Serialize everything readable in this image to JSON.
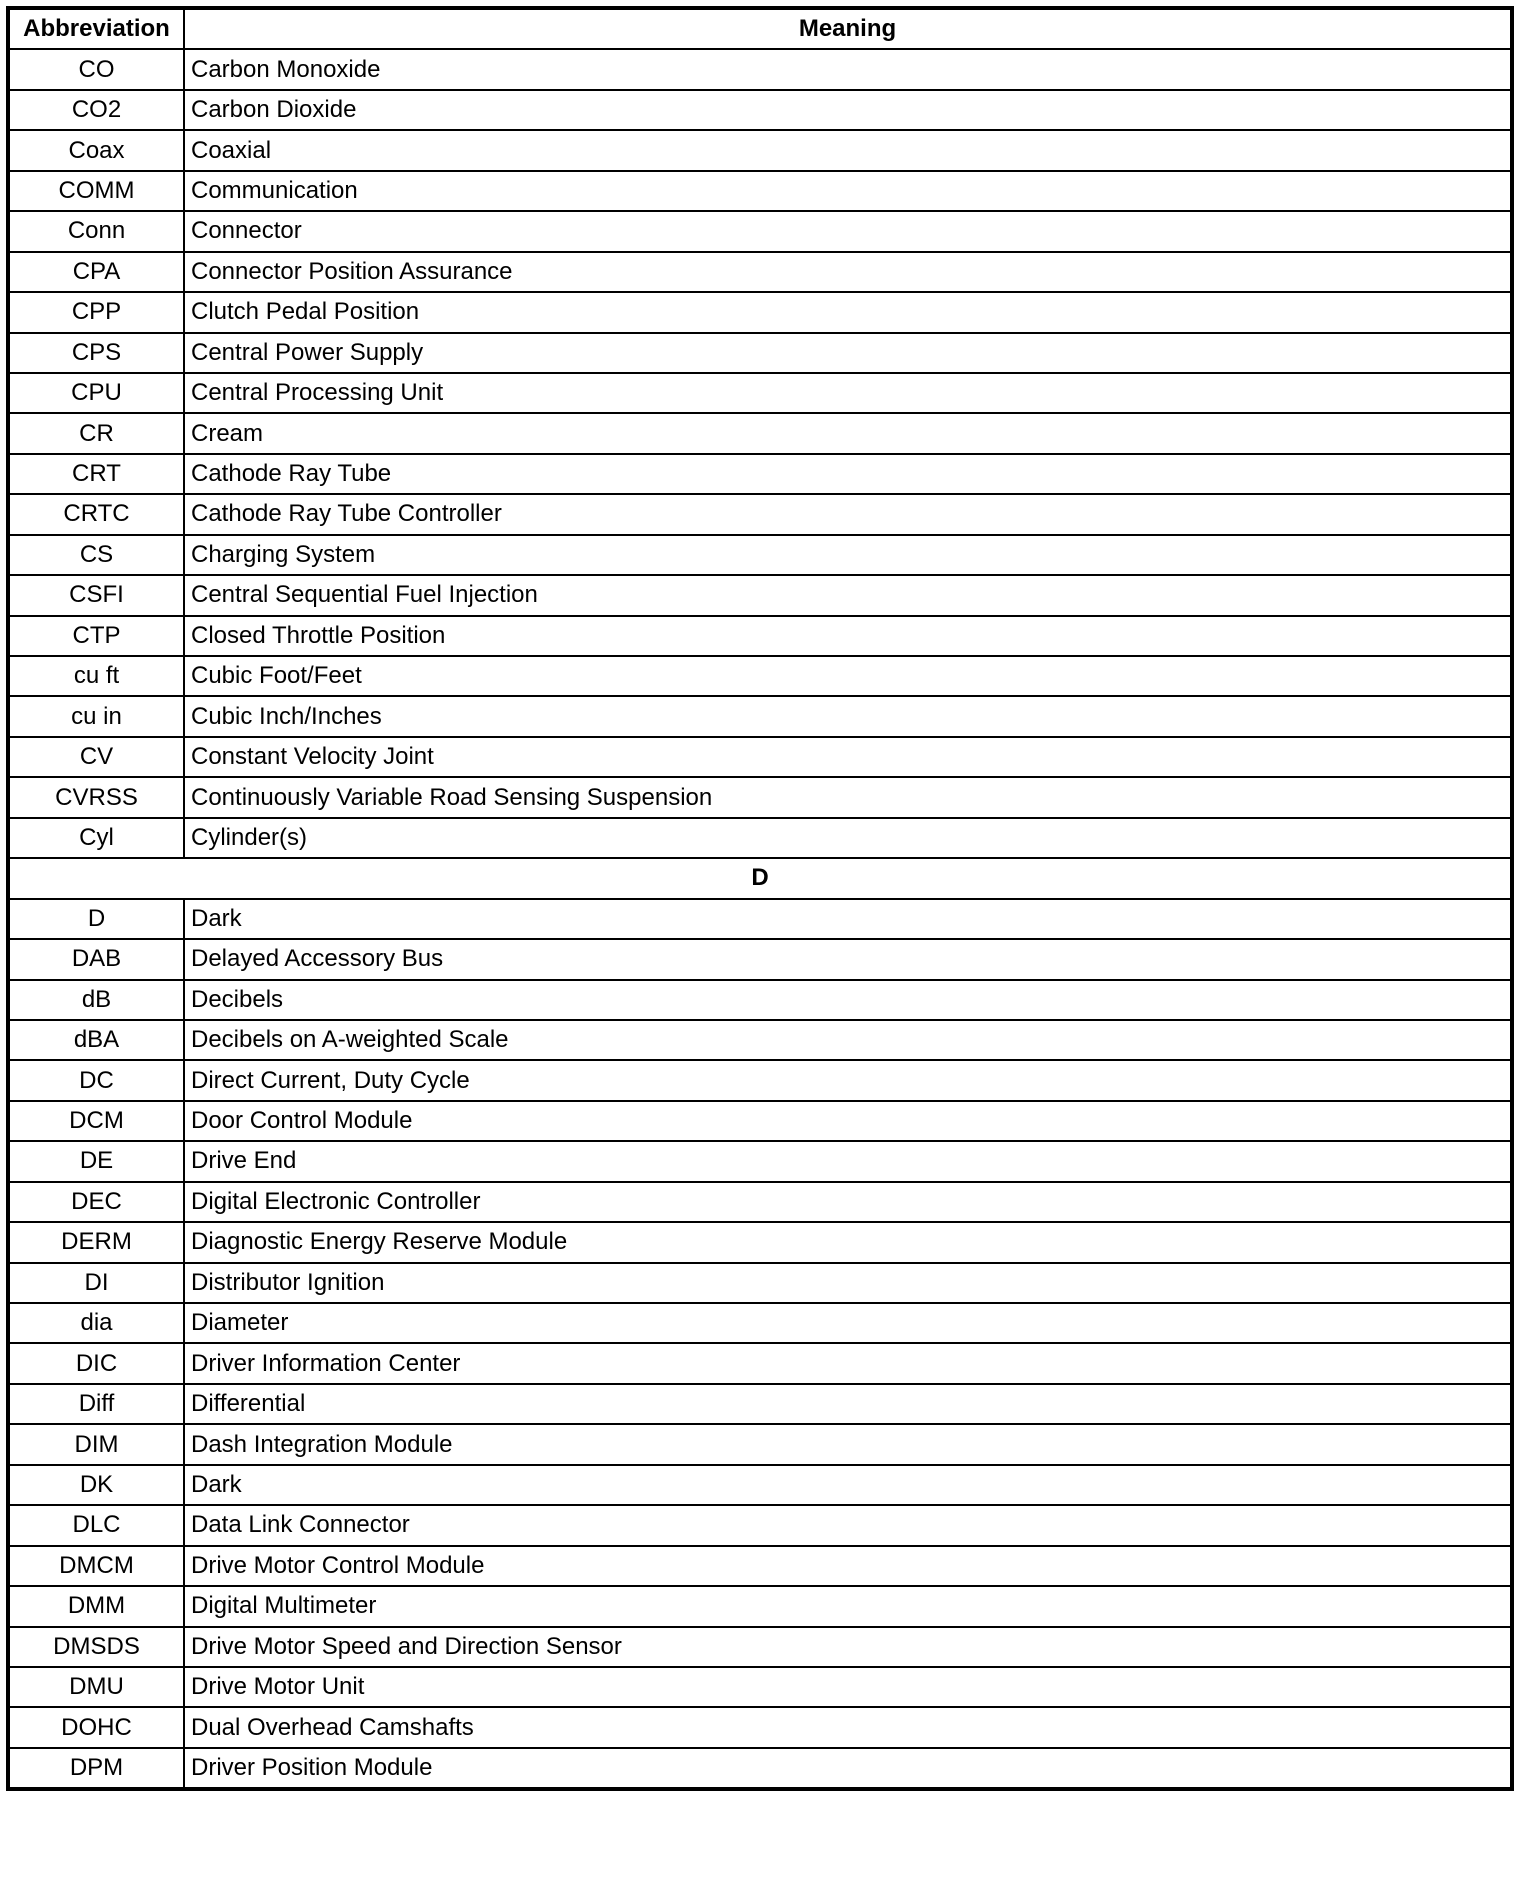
{
  "table": {
    "headers": {
      "abbreviation": "Abbreviation",
      "meaning": "Meaning"
    },
    "rows": [
      {
        "abbr": "CO",
        "meaning": "Carbon Monoxide"
      },
      {
        "abbr": "CO2",
        "meaning": "Carbon Dioxide"
      },
      {
        "abbr": "Coax",
        "meaning": "Coaxial"
      },
      {
        "abbr": "COMM",
        "meaning": "Communication"
      },
      {
        "abbr": "Conn",
        "meaning": "Connector"
      },
      {
        "abbr": "CPA",
        "meaning": "Connector Position Assurance"
      },
      {
        "abbr": "CPP",
        "meaning": "Clutch Pedal Position"
      },
      {
        "abbr": "CPS",
        "meaning": "Central Power Supply"
      },
      {
        "abbr": "CPU",
        "meaning": "Central Processing Unit"
      },
      {
        "abbr": "CR",
        "meaning": "Cream"
      },
      {
        "abbr": "CRT",
        "meaning": "Cathode Ray Tube"
      },
      {
        "abbr": "CRTC",
        "meaning": "Cathode Ray Tube Controller"
      },
      {
        "abbr": "CS",
        "meaning": "Charging System"
      },
      {
        "abbr": "CSFI",
        "meaning": "Central Sequential Fuel Injection"
      },
      {
        "abbr": "CTP",
        "meaning": "Closed Throttle Position"
      },
      {
        "abbr": "cu ft",
        "meaning": "Cubic Foot/Feet"
      },
      {
        "abbr": "cu in",
        "meaning": "Cubic Inch/Inches"
      },
      {
        "abbr": "CV",
        "meaning": "Constant Velocity Joint"
      },
      {
        "abbr": "CVRSS",
        "meaning": "Continuously Variable Road Sensing Suspension"
      },
      {
        "abbr": "Cyl",
        "meaning": "Cylinder(s)"
      },
      {
        "section": "D"
      },
      {
        "abbr": "D",
        "meaning": "Dark"
      },
      {
        "abbr": "DAB",
        "meaning": "Delayed Accessory Bus"
      },
      {
        "abbr": "dB",
        "meaning": "Decibels"
      },
      {
        "abbr": "dBA",
        "meaning": "Decibels on A-weighted Scale"
      },
      {
        "abbr": "DC",
        "meaning": "Direct Current, Duty Cycle"
      },
      {
        "abbr": "DCM",
        "meaning": "Door Control Module"
      },
      {
        "abbr": "DE",
        "meaning": "Drive End"
      },
      {
        "abbr": "DEC",
        "meaning": "Digital Electronic Controller"
      },
      {
        "abbr": "DERM",
        "meaning": "Diagnostic Energy Reserve Module"
      },
      {
        "abbr": "DI",
        "meaning": "Distributor Ignition"
      },
      {
        "abbr": "dia",
        "meaning": "Diameter"
      },
      {
        "abbr": "DIC",
        "meaning": "Driver Information Center"
      },
      {
        "abbr": "Diff",
        "meaning": "Differential"
      },
      {
        "abbr": "DIM",
        "meaning": "Dash Integration Module"
      },
      {
        "abbr": "DK",
        "meaning": "Dark"
      },
      {
        "abbr": "DLC",
        "meaning": "Data Link Connector"
      },
      {
        "abbr": "DMCM",
        "meaning": "Drive Motor Control Module"
      },
      {
        "abbr": "DMM",
        "meaning": "Digital Multimeter"
      },
      {
        "abbr": "DMSDS",
        "meaning": "Drive Motor Speed and Direction Sensor"
      },
      {
        "abbr": "DMU",
        "meaning": "Drive Motor Unit"
      },
      {
        "abbr": "DOHC",
        "meaning": "Dual Overhead Camshafts"
      },
      {
        "abbr": "DPM",
        "meaning": "Driver Position Module"
      }
    ]
  }
}
